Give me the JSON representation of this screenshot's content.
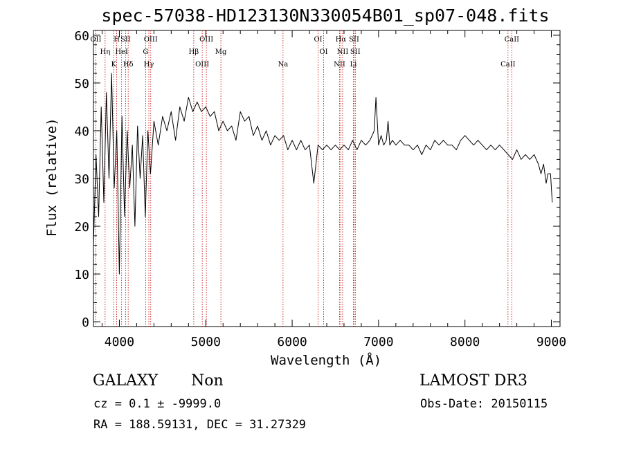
{
  "chart_data": {
    "type": "line",
    "title": "spec-57038-HD123130N330054B01_sp07-048.fits",
    "xlabel": "Wavelength (Å)",
    "ylabel": "Flux (relative)",
    "xlim": [
      3700,
      9100
    ],
    "ylim": [
      -1,
      61
    ],
    "xticks": [
      4000,
      5000,
      6000,
      7000,
      8000,
      9000
    ],
    "yticks": [
      0,
      10,
      20,
      30,
      40,
      50,
      60
    ],
    "series": [
      {
        "name": "spectrum",
        "x": [
          3700,
          3730,
          3760,
          3790,
          3820,
          3850,
          3880,
          3910,
          3940,
          3970,
          4000,
          4030,
          4060,
          4090,
          4120,
          4150,
          4180,
          4210,
          4240,
          4270,
          4300,
          4330,
          4360,
          4400,
          4450,
          4500,
          4550,
          4600,
          4650,
          4700,
          4750,
          4800,
          4850,
          4900,
          4950,
          5000,
          5050,
          5100,
          5150,
          5200,
          5250,
          5300,
          5350,
          5400,
          5450,
          5500,
          5550,
          5600,
          5650,
          5700,
          5750,
          5800,
          5850,
          5900,
          5950,
          6000,
          6050,
          6100,
          6150,
          6200,
          6250,
          6300,
          6350,
          6400,
          6450,
          6500,
          6550,
          6600,
          6650,
          6700,
          6750,
          6800,
          6850,
          6900,
          6950,
          6970,
          6985,
          7000,
          7030,
          7060,
          7090,
          7110,
          7130,
          7160,
          7200,
          7250,
          7300,
          7350,
          7400,
          7450,
          7500,
          7550,
          7600,
          7650,
          7700,
          7750,
          7800,
          7850,
          7900,
          7950,
          8000,
          8050,
          8100,
          8150,
          8200,
          8250,
          8300,
          8350,
          8400,
          8450,
          8500,
          8550,
          8600,
          8650,
          8700,
          8750,
          8800,
          8850,
          8880,
          8910,
          8940,
          8960,
          8990,
          9010
        ],
        "y": [
          16,
          35,
          22,
          45,
          25,
          48,
          30,
          52,
          28,
          40,
          10,
          43,
          22,
          40,
          28,
          37,
          20,
          41,
          30,
          39,
          22,
          40,
          31,
          42,
          37,
          43,
          40,
          44,
          38,
          45,
          42,
          47,
          44,
          46,
          44,
          45,
          43,
          44,
          40,
          42,
          40,
          41,
          38,
          44,
          42,
          43,
          39,
          41,
          38,
          40,
          37,
          39,
          38,
          39,
          36,
          38,
          36,
          38,
          36,
          37,
          29,
          37,
          36,
          37,
          36,
          37,
          36,
          37,
          36,
          38,
          36,
          38,
          37,
          38,
          40,
          47,
          42,
          37,
          39,
          37,
          38,
          42,
          37,
          38,
          37,
          38,
          37,
          37,
          36,
          37,
          35,
          37,
          36,
          38,
          37,
          38,
          37,
          37,
          36,
          38,
          39,
          38,
          37,
          38,
          37,
          36,
          37,
          36,
          37,
          36,
          35,
          34,
          36,
          34,
          35,
          34,
          35,
          33,
          31,
          33,
          29,
          31,
          31,
          25
        ]
      }
    ],
    "line_markers": [
      {
        "wl": 3727,
        "label": "OII"
      },
      {
        "wl": 3835,
        "label": "Hη"
      },
      {
        "wl": 3934,
        "label": "K"
      },
      {
        "wl": 3969,
        "label": "H"
      },
      {
        "wl": 4026,
        "label": "HeI"
      },
      {
        "wl": 4102,
        "label": "Hδ"
      },
      {
        "wl": 4072,
        "label": "SII"
      },
      {
        "wl": 4304,
        "label": "G"
      },
      {
        "wl": 4341,
        "label": "Hγ"
      },
      {
        "wl": 4363,
        "label": "OIII"
      },
      {
        "wl": 4861,
        "label": "Hβ"
      },
      {
        "wl": 4959,
        "label": "OIII"
      },
      {
        "wl": 5007,
        "label": "OIII"
      },
      {
        "wl": 5175,
        "label": "Mg"
      },
      {
        "wl": 5894,
        "label": "Na"
      },
      {
        "wl": 6300,
        "label": "OI"
      },
      {
        "wl": 6364,
        "label": "OI"
      },
      {
        "wl": 6548,
        "label": "NII"
      },
      {
        "wl": 6563,
        "label": "Hα"
      },
      {
        "wl": 6584,
        "label": "NII"
      },
      {
        "wl": 6708,
        "label": "Li"
      },
      {
        "wl": 6717,
        "label": "SII"
      },
      {
        "wl": 6731,
        "label": "SII"
      },
      {
        "wl": 8498,
        "label": "CaII"
      },
      {
        "wl": 8542,
        "label": "CaII"
      }
    ]
  },
  "labels": {
    "class": "GALAXY",
    "subclass": "Non",
    "survey": "LAMOST DR3",
    "cz": "cz = 0.1 ± -9999.0",
    "obs_date": "Obs-Date: 20150115",
    "radec": "RA = 188.59131, DEC =  31.27329"
  },
  "colors": {
    "spectrum": "#000000",
    "markers": "#c00000",
    "axes": "#000000"
  }
}
